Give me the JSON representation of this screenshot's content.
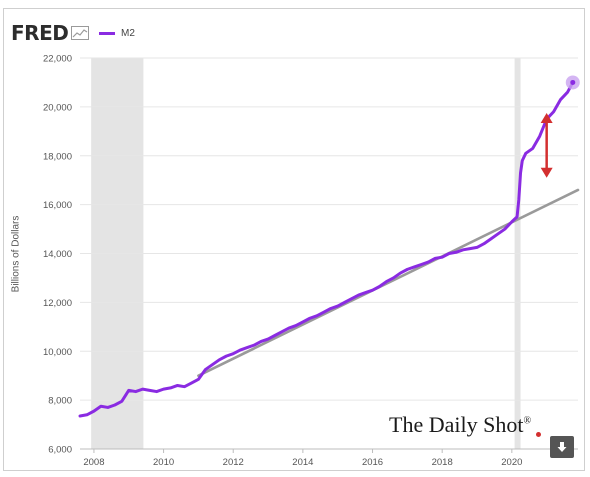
{
  "logo": {
    "text": "FRED"
  },
  "chart_data": {
    "type": "line",
    "title": "",
    "xlabel": "",
    "ylabel": "Billions of Dollars",
    "legend": {
      "position": "top-left",
      "entries": [
        "M2"
      ]
    },
    "xlim": [
      2007.6,
      2021.9
    ],
    "ylim": [
      6000,
      22000
    ],
    "x_ticks": [
      "2008",
      "2010",
      "2012",
      "2014",
      "2016",
      "2018",
      "2020"
    ],
    "x_tick_values": [
      2008,
      2010,
      2012,
      2014,
      2016,
      2018,
      2020
    ],
    "y_ticks": [
      "6,000",
      "8,000",
      "10,000",
      "12,000",
      "14,000",
      "16,000",
      "18,000",
      "20,000",
      "22,000"
    ],
    "y_tick_values": [
      6000,
      8000,
      10000,
      12000,
      14000,
      16000,
      18000,
      20000,
      22000
    ],
    "grid": "horizontal",
    "recessions": [
      [
        2007.92,
        2009.42
      ],
      [
        2020.08,
        2020.25
      ]
    ],
    "series": [
      {
        "name": "M2",
        "color": "#8a2be2",
        "x": [
          2007.6,
          2007.8,
          2008.0,
          2008.2,
          2008.4,
          2008.6,
          2008.8,
          2009.0,
          2009.2,
          2009.4,
          2009.6,
          2009.8,
          2010.0,
          2010.2,
          2010.4,
          2010.6,
          2010.8,
          2011.0,
          2011.2,
          2011.4,
          2011.6,
          2011.8,
          2012.0,
          2012.2,
          2012.4,
          2012.6,
          2012.8,
          2013.0,
          2013.2,
          2013.4,
          2013.6,
          2013.8,
          2014.0,
          2014.2,
          2014.4,
          2014.6,
          2014.8,
          2015.0,
          2015.2,
          2015.4,
          2015.6,
          2015.8,
          2016.0,
          2016.2,
          2016.4,
          2016.6,
          2016.8,
          2017.0,
          2017.2,
          2017.4,
          2017.6,
          2017.8,
          2018.0,
          2018.2,
          2018.4,
          2018.6,
          2018.8,
          2019.0,
          2019.2,
          2019.4,
          2019.6,
          2019.8,
          2020.0,
          2020.15,
          2020.2,
          2020.25,
          2020.3,
          2020.4,
          2020.6,
          2020.8,
          2021.0,
          2021.2,
          2021.4,
          2021.6,
          2021.75
        ],
        "y": [
          7350,
          7400,
          7550,
          7750,
          7700,
          7800,
          7950,
          8400,
          8350,
          8450,
          8400,
          8350,
          8450,
          8500,
          8600,
          8550,
          8700,
          8850,
          9250,
          9450,
          9650,
          9800,
          9900,
          10050,
          10150,
          10250,
          10400,
          10500,
          10650,
          10800,
          10950,
          11050,
          11200,
          11350,
          11450,
          11600,
          11750,
          11850,
          12000,
          12150,
          12300,
          12400,
          12500,
          12650,
          12850,
          13000,
          13200,
          13350,
          13450,
          13550,
          13650,
          13800,
          13850,
          14000,
          14050,
          14150,
          14200,
          14250,
          14400,
          14600,
          14800,
          15000,
          15300,
          15500,
          16200,
          17300,
          17800,
          18100,
          18300,
          18800,
          19500,
          19800,
          20300,
          20600,
          21000
        ]
      },
      {
        "color": "#9a9a9a",
        "x": [
          2011.0,
          2021.9
        ],
        "y": [
          9000,
          16600
        ]
      }
    ],
    "highlight_point": {
      "x": 2021.75,
      "y": 21000
    },
    "annotation": {
      "type": "double-arrow",
      "x": 2021.0,
      "y_from": 17100,
      "y_to": 19750,
      "color": "#d32f2f"
    }
  },
  "brand": {
    "text": "The Daily Shot",
    "mark": "®"
  },
  "icons": {
    "download": "download-icon",
    "logo": "fred-graph-icon"
  }
}
